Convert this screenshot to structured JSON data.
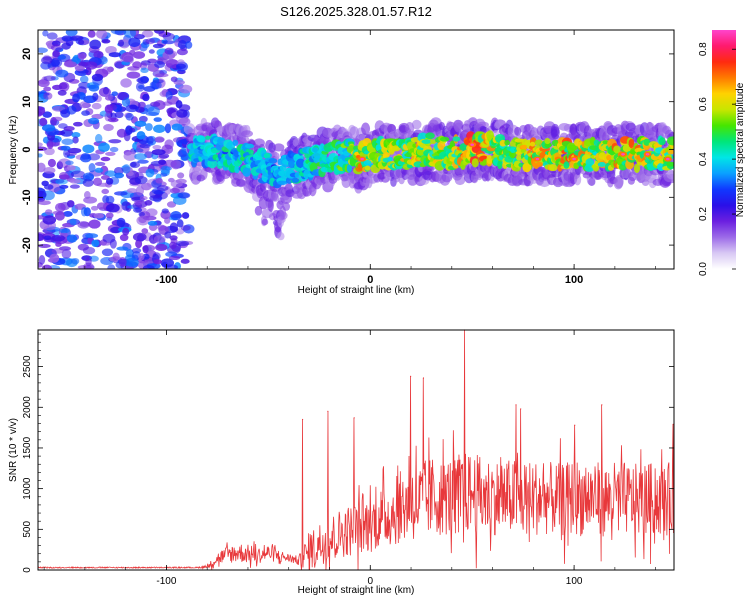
{
  "title": "S126.2025.328.01.57.R12",
  "colors": {
    "snr_line": "#e8383b",
    "frame": "#000000",
    "background": "#ffffff"
  },
  "chart_data": [
    {
      "type": "heatmap",
      "xlabel": "Height of straight line (km)",
      "ylabel": "Frequency (Hz)",
      "xlim": [
        -163,
        149
      ],
      "ylim": [
        -25,
        25
      ],
      "x_ticks": [
        "-100",
        "0",
        "100"
      ],
      "y_ticks": [
        "-20",
        "-10",
        "0",
        "10",
        "20"
      ],
      "colorbar": {
        "label": "Normalized spectral amplitude",
        "range": [
          0.0,
          0.87
        ],
        "ticks": [
          "0.0",
          "0.2",
          "0.4",
          "0.6",
          "0.8"
        ],
        "colormap": [
          "#ffffff",
          "#d8c8f4",
          "#9c6ae8",
          "#6b1fe0",
          "#2a10e8",
          "#1038ff",
          "#0aa0ff",
          "#00e6e6",
          "#00e67a",
          "#46e600",
          "#c8e600",
          "#ffd200",
          "#ff7a00",
          "#ff2a10",
          "#ff1a6e",
          "#ff44cc"
        ]
      },
      "noise_region": {
        "x": [
          -163,
          -89
        ],
        "freq": [
          -25,
          25
        ],
        "amplitude": 0.2
      },
      "ridge": {
        "x": [
          -88,
          -80,
          -70,
          -60,
          -50,
          -45,
          -40,
          -30,
          -20,
          -10,
          -5,
          0,
          10,
          20,
          30,
          40,
          50,
          60,
          70,
          80,
          90,
          100,
          110,
          120,
          130,
          140,
          148
        ],
        "freq": [
          0,
          0,
          -1,
          -2,
          -4,
          -5,
          -4,
          -3,
          -2,
          -1,
          -2,
          -1,
          -1,
          -1,
          0,
          -1,
          0,
          0,
          -1,
          -1,
          -1,
          -1,
          -1,
          -1,
          -1,
          -1,
          -1
        ],
        "peak": [
          0.35,
          0.35,
          0.4,
          0.4,
          0.35,
          0.3,
          0.35,
          0.4,
          0.45,
          0.5,
          0.75,
          0.55,
          0.6,
          0.65,
          0.6,
          0.6,
          0.8,
          0.65,
          0.6,
          0.7,
          0.7,
          0.72,
          0.6,
          0.7,
          0.72,
          0.6,
          0.65
        ]
      }
    },
    {
      "type": "line",
      "xlabel": "Height of straight line (km)",
      "ylabel": "SNR (10 * v/v)",
      "xlim": [
        -163,
        149
      ],
      "ylim": [
        0,
        2950
      ],
      "x_ticks": [
        "-100",
        "0",
        "100"
      ],
      "y_ticks": [
        "0",
        "500",
        "1000",
        "1500",
        "2000",
        "2500"
      ],
      "series": [
        {
          "x": [
            -163,
            -130,
            -100,
            -85,
            -80,
            -75,
            -70,
            -65,
            -60,
            -55,
            -50,
            -45,
            -40,
            -35,
            -30,
            -25,
            -20,
            -15,
            -10,
            -5,
            0,
            5,
            10,
            15,
            20,
            25,
            30,
            35,
            40,
            45,
            50,
            55,
            60,
            65,
            70,
            75,
            80,
            85,
            90,
            95,
            100,
            105,
            110,
            115,
            120,
            125,
            130,
            135,
            140,
            145,
            149
          ],
          "baseline": [
            30,
            30,
            30,
            30,
            40,
            150,
            200,
            230,
            210,
            190,
            220,
            180,
            150,
            120,
            250,
            350,
            420,
            480,
            520,
            560,
            600,
            680,
            720,
            820,
            900,
            880,
            950,
            940,
            960,
            980,
            1000,
            950,
            960,
            920,
            950,
            900,
            940,
            930,
            920,
            900,
            950,
            930,
            940,
            900,
            930,
            920,
            900,
            920,
            910,
            900,
            950
          ],
          "spread": [
            15,
            15,
            15,
            15,
            40,
            150,
            220,
            250,
            230,
            200,
            200,
            170,
            100,
            120,
            500,
            550,
            550,
            600,
            650,
            700,
            700,
            750,
            800,
            900,
            1000,
            1000,
            1000,
            950,
            1000,
            1050,
            1000,
            1000,
            950,
            950,
            950,
            950,
            950,
            900,
            900,
            900,
            950,
            950,
            900,
            900,
            900,
            900,
            900,
            900,
            900,
            900,
            900
          ]
        }
      ],
      "spikes": [
        {
          "x": 46.2,
          "y": 2950
        },
        {
          "x": 19.8,
          "y": 2380
        },
        {
          "x": 26.1,
          "y": 2360
        },
        {
          "x": -33.2,
          "y": 1850
        },
        {
          "x": -20.8,
          "y": 1950
        },
        {
          "x": -7.9,
          "y": 1870
        },
        {
          "x": 71.5,
          "y": 2030
        },
        {
          "x": 73.8,
          "y": 1980
        },
        {
          "x": 100.3,
          "y": 1780
        },
        {
          "x": 113.6,
          "y": 2030
        },
        {
          "x": 148.6,
          "y": 1790
        }
      ]
    }
  ]
}
